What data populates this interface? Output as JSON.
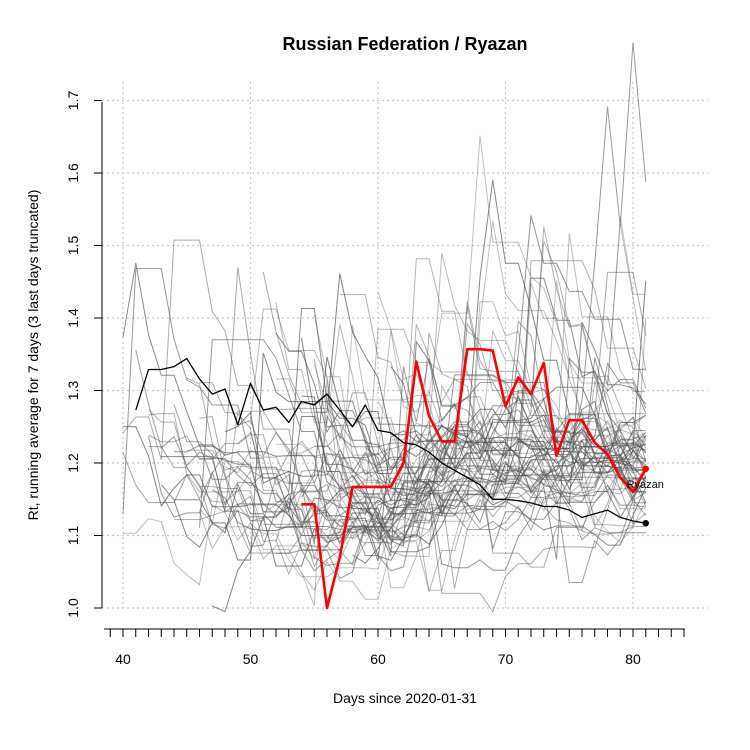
{
  "chart_data": {
    "type": "line",
    "title": "Russian Federation / Ryazan",
    "xlabel": "Days since 2020-01-31",
    "ylabel": "Rt, running average for 7 days (3 last days truncated)",
    "xlim": [
      38.5,
      84
    ],
    "ylim": [
      1.0,
      1.7
    ],
    "x_ticks": [
      40,
      50,
      60,
      70,
      80
    ],
    "y_ticks": [
      1.0,
      1.1,
      1.2,
      1.3,
      1.4,
      1.5,
      1.6,
      1.7
    ],
    "x_minor_ticks": [
      39,
      40,
      41,
      42,
      43,
      44,
      45,
      46,
      47,
      48,
      49,
      50,
      51,
      52,
      53,
      54,
      55,
      56,
      57,
      58,
      59,
      60,
      61,
      62,
      63,
      64,
      65,
      66,
      67,
      68,
      69,
      70,
      71,
      72,
      73,
      74,
      75,
      76,
      77,
      78,
      79,
      80,
      81,
      82,
      83,
      84
    ],
    "grid": true,
    "highlight_label": "Ryazan",
    "colors": {
      "highlight": "#ff0000",
      "national": "#000000",
      "regions": "#555555"
    },
    "series": [
      {
        "name": "Ryazan",
        "x": [
          54,
          55,
          56,
          57,
          58,
          59,
          60,
          61,
          62,
          63,
          64,
          65,
          66,
          67,
          68,
          69,
          70,
          71,
          72,
          73,
          74,
          75,
          76,
          77,
          78,
          79,
          80,
          81
        ],
        "values": [
          1.143,
          1.143,
          1.0,
          1.07,
          1.167,
          1.167,
          1.167,
          1.167,
          1.2,
          1.34,
          1.265,
          1.23,
          1.23,
          1.357,
          1.357,
          1.355,
          1.278,
          1.318,
          1.295,
          1.338,
          1.21,
          1.259,
          1.259,
          1.228,
          1.212,
          1.18,
          1.16,
          1.192
        ]
      },
      {
        "name": "Russian Federation",
        "x": [
          41,
          42,
          43,
          44,
          45,
          46,
          47,
          48,
          49,
          50,
          51,
          52,
          53,
          54,
          55,
          56,
          57,
          58,
          59,
          60,
          61,
          62,
          63,
          64,
          65,
          66,
          67,
          68,
          69,
          70,
          71,
          72,
          73,
          74,
          75,
          76,
          77,
          78,
          79,
          80,
          81
        ],
        "values": [
          1.273,
          1.329,
          1.329,
          1.333,
          1.344,
          1.316,
          1.295,
          1.302,
          1.253,
          1.31,
          1.273,
          1.277,
          1.256,
          1.285,
          1.28,
          1.295,
          1.273,
          1.25,
          1.28,
          1.245,
          1.242,
          1.228,
          1.225,
          1.215,
          1.2,
          1.19,
          1.18,
          1.17,
          1.15,
          1.15,
          1.148,
          1.145,
          1.14,
          1.14,
          1.135,
          1.125,
          1.13,
          1.135,
          1.125,
          1.12,
          1.117
        ]
      }
    ]
  }
}
